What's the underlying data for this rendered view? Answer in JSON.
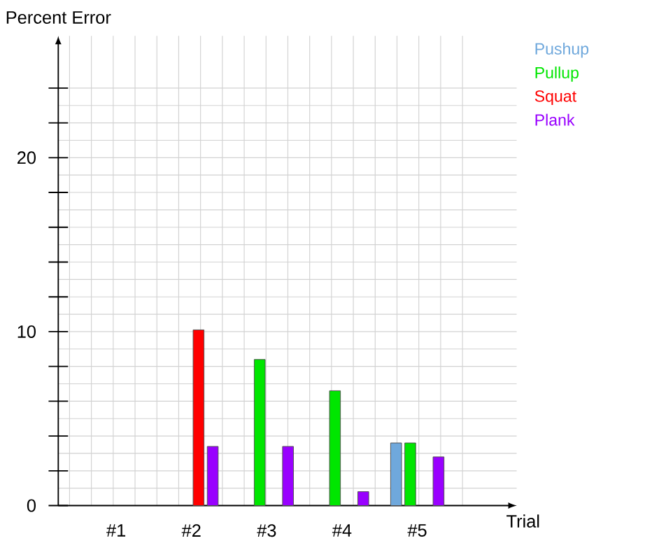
{
  "chart_data": {
    "type": "bar",
    "xlabel": "Trial",
    "ylabel": "Percent Error",
    "categories": [
      "#1",
      "#2",
      "#3",
      "#4",
      "#5"
    ],
    "series": [
      {
        "name": "Pushup",
        "color": "#6fa8dc",
        "values": [
          null,
          null,
          null,
          null,
          3.6
        ]
      },
      {
        "name": "Pullup",
        "color": "#00e600",
        "values": [
          null,
          null,
          8.4,
          6.6,
          3.6
        ]
      },
      {
        "name": "Squat",
        "color": "#ff0000",
        "values": [
          null,
          10.1,
          null,
          null,
          null
        ]
      },
      {
        "name": "Plank",
        "color": "#9900ff",
        "values": [
          null,
          3.4,
          3.4,
          0.8,
          2.8
        ]
      }
    ],
    "ylim": [
      0,
      27
    ],
    "yticks": [
      0,
      {
        "value": 2,
        "label": null
      },
      {
        "value": 4,
        "label": null
      },
      {
        "value": 6,
        "label": null
      },
      {
        "value": 8,
        "label": null
      },
      10,
      {
        "value": 12,
        "label": null
      },
      {
        "value": 14,
        "label": null
      },
      {
        "value": 16,
        "label": null
      },
      {
        "value": 18,
        "label": null
      },
      20,
      {
        "value": 22,
        "label": null
      },
      {
        "value": 24,
        "label": null
      }
    ],
    "grid": true,
    "legend": "top right"
  }
}
